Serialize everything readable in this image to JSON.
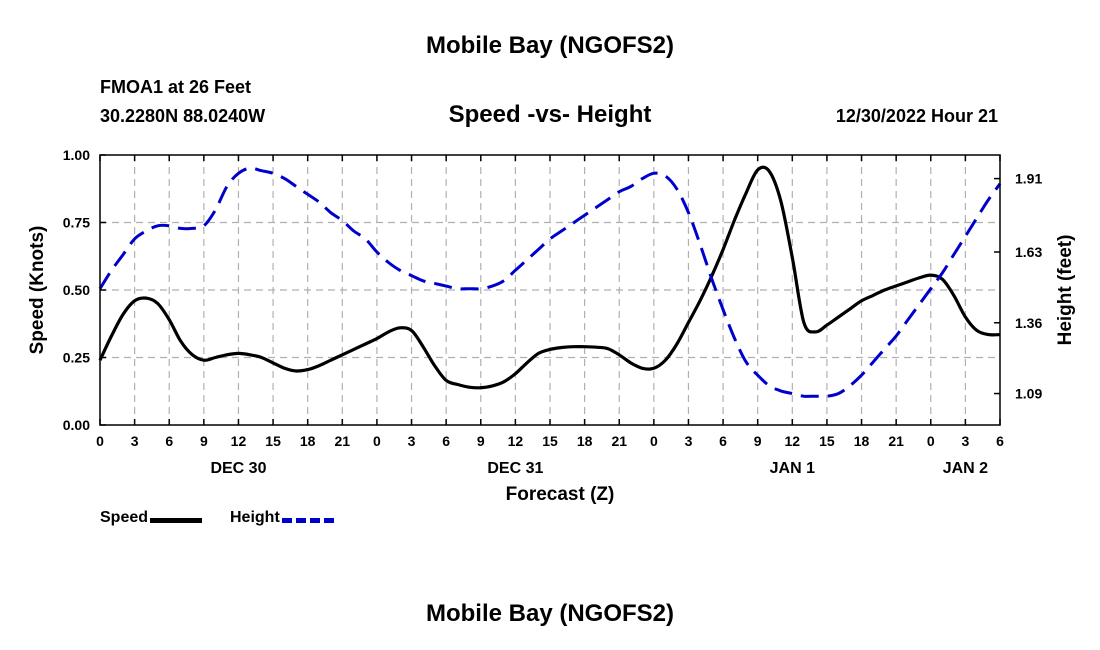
{
  "header": {
    "title": "Mobile Bay (NGOFS2)",
    "station": "FMOA1 at 26 Feet",
    "coords": "30.2280N  88.0240W",
    "subtitle": "Speed -vs- Height",
    "date": "12/30/2022 Hour 21"
  },
  "footer": {
    "title": "Mobile Bay (NGOFS2)"
  },
  "colors": {
    "speed": "#000000",
    "height": "#0000cc",
    "grid": "#b0b0b0"
  },
  "chart_data": {
    "type": "line",
    "title": "Speed -vs- Height",
    "xlabel": "Forecast (Z)",
    "ylabel": "Speed (Knots)",
    "y2label": "Height (feet)",
    "x_range": [
      0,
      78
    ],
    "ylim": [
      0,
      1
    ],
    "y2lim": [
      0.97,
      2.0
    ],
    "grid": true,
    "legend_position": "bottom-left",
    "x_ticks": [
      0,
      3,
      6,
      9,
      12,
      15,
      18,
      21,
      24,
      27,
      30,
      33,
      36,
      39,
      42,
      45,
      48,
      51,
      54,
      57,
      60,
      63,
      66,
      69,
      72,
      75,
      78
    ],
    "x_tick_labels": [
      "0",
      "3",
      "6",
      "9",
      "12",
      "15",
      "18",
      "21",
      "0",
      "3",
      "6",
      "9",
      "12",
      "15",
      "18",
      "21",
      "0",
      "3",
      "6",
      "9",
      "12",
      "15",
      "18",
      "21",
      "0",
      "3",
      "6"
    ],
    "day_labels": [
      {
        "x": 12,
        "label": "DEC 30"
      },
      {
        "x": 36,
        "label": "DEC 31"
      },
      {
        "x": 60,
        "label": "JAN 1"
      },
      {
        "x": 75,
        "label": "JAN 2"
      }
    ],
    "y_ticks": [
      0,
      0.25,
      0.5,
      0.75,
      1.0
    ],
    "y_tick_labels": [
      "0.00",
      "0.25",
      "0.50",
      "0.75",
      "1.00"
    ],
    "y2_ticks": [
      1.09,
      1.36,
      1.63,
      1.91
    ],
    "y2_tick_labels": [
      "1.09",
      "1.36",
      "1.63",
      "1.91"
    ],
    "series": [
      {
        "name": "Speed",
        "axis": "left",
        "style": "solid",
        "x": [
          0,
          1,
          2,
          3,
          4,
          5,
          6,
          7,
          8,
          9,
          10,
          11,
          12,
          13,
          14,
          15,
          16,
          17,
          18,
          19,
          20,
          21,
          22,
          23,
          24,
          25,
          26,
          27,
          28,
          29,
          30,
          31,
          32,
          33,
          34,
          35,
          36,
          37,
          38,
          39,
          40,
          41,
          42,
          43,
          44,
          45,
          46,
          47,
          48,
          49,
          50,
          51,
          52,
          53,
          54,
          55,
          56,
          57,
          58,
          59,
          60,
          61,
          62,
          63,
          64,
          65,
          66,
          67,
          68,
          69,
          70,
          71,
          72,
          73,
          74,
          75,
          76,
          77,
          78
        ],
        "values": [
          0.24,
          0.33,
          0.41,
          0.46,
          0.47,
          0.45,
          0.39,
          0.31,
          0.26,
          0.24,
          0.25,
          0.26,
          0.265,
          0.26,
          0.25,
          0.23,
          0.21,
          0.2,
          0.205,
          0.22,
          0.24,
          0.26,
          0.28,
          0.3,
          0.32,
          0.345,
          0.36,
          0.35,
          0.29,
          0.22,
          0.165,
          0.15,
          0.14,
          0.138,
          0.145,
          0.16,
          0.19,
          0.23,
          0.265,
          0.28,
          0.287,
          0.29,
          0.29,
          0.288,
          0.283,
          0.26,
          0.23,
          0.21,
          0.21,
          0.24,
          0.3,
          0.38,
          0.46,
          0.55,
          0.65,
          0.76,
          0.86,
          0.945,
          0.94,
          0.83,
          0.62,
          0.38,
          0.345,
          0.37,
          0.4,
          0.43,
          0.46,
          0.48,
          0.5,
          0.515,
          0.53,
          0.545,
          0.555,
          0.54,
          0.48,
          0.4,
          0.35,
          0.335,
          0.335
        ]
      },
      {
        "name": "Height",
        "axis": "right",
        "style": "dashed",
        "x": [
          0,
          1,
          2,
          3,
          4,
          5,
          6,
          7,
          8,
          9,
          10,
          11,
          12,
          13,
          14,
          15,
          16,
          17,
          18,
          19,
          20,
          21,
          22,
          23,
          24,
          25,
          26,
          27,
          28,
          29,
          30,
          31,
          32,
          33,
          34,
          35,
          36,
          37,
          38,
          39,
          40,
          41,
          42,
          43,
          44,
          45,
          46,
          47,
          48,
          49,
          50,
          51,
          52,
          53,
          54,
          55,
          56,
          57,
          58,
          59,
          60,
          61,
          62,
          63,
          64,
          65,
          66,
          67,
          68,
          69,
          70,
          71,
          72,
          73,
          74,
          75,
          76,
          77,
          78
        ],
        "values": [
          1.49,
          1.56,
          1.62,
          1.68,
          1.71,
          1.73,
          1.73,
          1.72,
          1.72,
          1.73,
          1.79,
          1.88,
          1.93,
          1.95,
          1.94,
          1.93,
          1.91,
          1.88,
          1.85,
          1.82,
          1.78,
          1.75,
          1.71,
          1.68,
          1.63,
          1.59,
          1.56,
          1.54,
          1.52,
          1.51,
          1.5,
          1.49,
          1.49,
          1.49,
          1.5,
          1.52,
          1.56,
          1.6,
          1.64,
          1.68,
          1.71,
          1.74,
          1.77,
          1.8,
          1.83,
          1.86,
          1.88,
          1.91,
          1.93,
          1.92,
          1.87,
          1.78,
          1.66,
          1.53,
          1.41,
          1.3,
          1.21,
          1.16,
          1.12,
          1.1,
          1.09,
          1.08,
          1.08,
          1.08,
          1.09,
          1.12,
          1.16,
          1.21,
          1.26,
          1.31,
          1.37,
          1.43,
          1.49,
          1.55,
          1.62,
          1.69,
          1.76,
          1.83,
          1.89
        ]
      }
    ]
  },
  "legend": {
    "speed_label": "Speed",
    "height_label": "Height"
  }
}
